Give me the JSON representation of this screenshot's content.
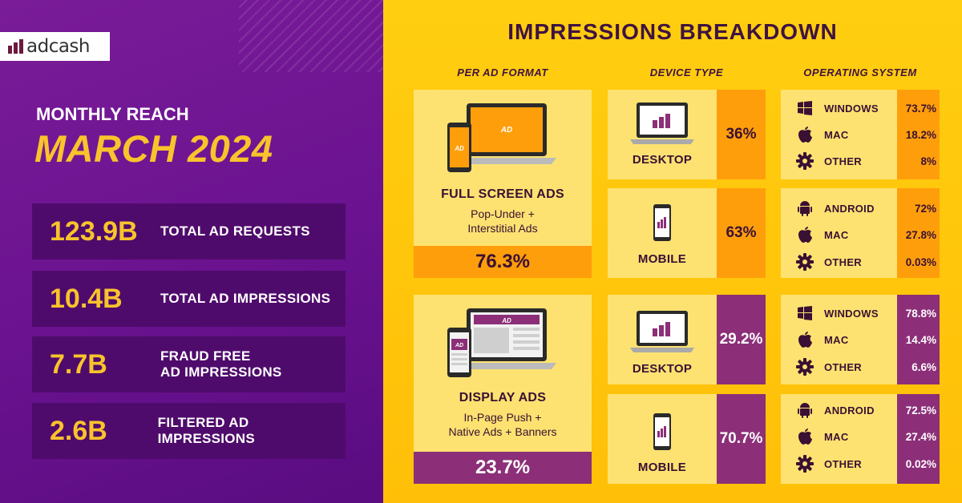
{
  "brand": {
    "logo_text": "adcash"
  },
  "reach_label": "MONTHLY REACH",
  "month_title": "MARCH 2024",
  "stats": [
    {
      "value": "123.9B",
      "label": "TOTAL AD REQUESTS"
    },
    {
      "value": "10.4B",
      "label": "TOTAL AD IMPRESSIONS"
    },
    {
      "value": "7.7B",
      "label": "FRAUD FREE\nAD IMPRESSIONS"
    },
    {
      "value": "2.6B",
      "label": "FILTERED AD IMPRESSIONS"
    }
  ],
  "breakdown": {
    "title": "IMPRESSIONS BREAKDOWN",
    "col_heads": {
      "format": "PER AD FORMAT",
      "device": "DEVICE TYPE",
      "os": "OPERATING SYSTEM"
    },
    "formats": [
      {
        "name": "FULL SCREEN ADS",
        "subtitle": "Pop-Under +\nInterstitial Ads",
        "pct": "76.3%",
        "ad_label": "AD",
        "color": "#ff9e0b"
      },
      {
        "name": "DISPLAY ADS",
        "subtitle": "In-Page Push +\nNative Ads + Banners",
        "pct": "23.7%",
        "ad_label": "AD",
        "color": "#8c2f78"
      }
    ],
    "devices": [
      {
        "name": "DESKTOP",
        "pct": "36%",
        "icon": "laptop-icon"
      },
      {
        "name": "MOBILE",
        "pct": "63%",
        "icon": "phone-icon"
      },
      {
        "name": "DESKTOP",
        "pct": "29.2%",
        "icon": "laptop-icon"
      },
      {
        "name": "MOBILE",
        "pct": "70.7%",
        "icon": "phone-icon"
      }
    ],
    "os_groups": [
      {
        "rows": [
          {
            "name": "WINDOWS",
            "pct": "73.7%",
            "icon": "windows-icon"
          },
          {
            "name": "MAC",
            "pct": "18.2%",
            "icon": "apple-icon"
          },
          {
            "name": "OTHER",
            "pct": "8%",
            "icon": "gear-icon"
          }
        ]
      },
      {
        "rows": [
          {
            "name": "ANDROID",
            "pct": "72%",
            "icon": "android-icon"
          },
          {
            "name": "MAC",
            "pct": "27.8%",
            "icon": "apple-icon"
          },
          {
            "name": "OTHER",
            "pct": "0.03%",
            "icon": "gear-icon"
          }
        ]
      },
      {
        "rows": [
          {
            "name": "WINDOWS",
            "pct": "78.8%",
            "icon": "windows-icon"
          },
          {
            "name": "MAC",
            "pct": "14.4%",
            "icon": "apple-icon"
          },
          {
            "name": "OTHER",
            "pct": "6.6%",
            "icon": "gear-icon"
          }
        ]
      },
      {
        "rows": [
          {
            "name": "ANDROID",
            "pct": "72.5%",
            "icon": "android-icon"
          },
          {
            "name": "MAC",
            "pct": "27.4%",
            "icon": "apple-icon"
          },
          {
            "name": "OTHER",
            "pct": "0.02%",
            "icon": "gear-icon"
          }
        ]
      }
    ]
  },
  "colors": {
    "left_bg": "#6a1290",
    "right_bg": "#ffc60c",
    "accent_yellow": "#f9c32c",
    "orange": "#ff9e0b",
    "purple": "#8c2f78",
    "card": "#fde271"
  }
}
